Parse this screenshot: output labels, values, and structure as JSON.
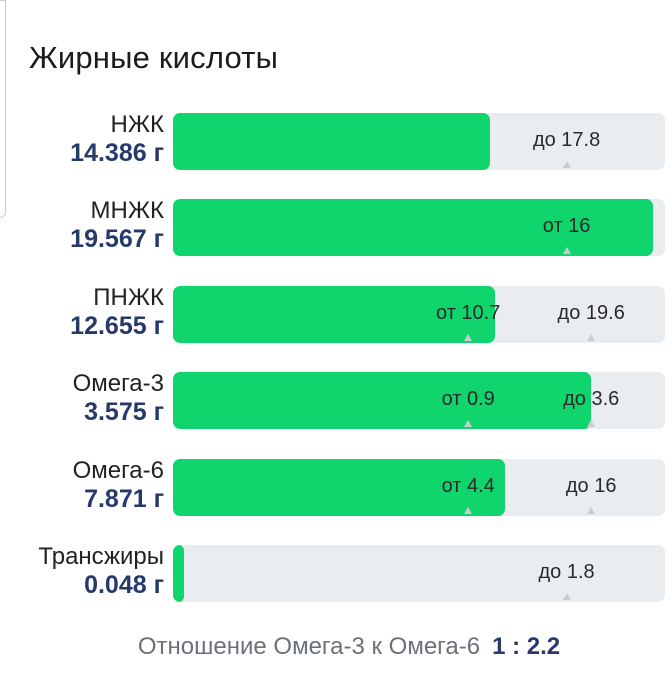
{
  "title": "Жирные кислоты",
  "colors": {
    "fill": "#10d46c",
    "track": "#eaedf0",
    "value_text": "#27386b"
  },
  "rows": [
    {
      "name": "НЖК",
      "value": "14.386 г",
      "fill_fraction": 0.645,
      "markers": [
        {
          "label": "до 17.8",
          "position_fraction": 0.8
        }
      ]
    },
    {
      "name": "МНЖК",
      "value": "19.567 г",
      "fill_fraction": 0.975,
      "markers": [
        {
          "label": "от 16",
          "position_fraction": 0.8
        }
      ]
    },
    {
      "name": "ПНЖК",
      "value": "12.655 г",
      "fill_fraction": 0.655,
      "markers": [
        {
          "label": "от 10.7",
          "position_fraction": 0.6
        },
        {
          "label": "до 19.6",
          "position_fraction": 0.85
        }
      ]
    },
    {
      "name": "Омега-3",
      "value": "3.575 г",
      "fill_fraction": 0.85,
      "markers": [
        {
          "label": "от 0.9",
          "position_fraction": 0.6
        },
        {
          "label": "до 3.6",
          "position_fraction": 0.85
        }
      ]
    },
    {
      "name": "Омега-6",
      "value": "7.871 г",
      "fill_fraction": 0.675,
      "markers": [
        {
          "label": "от 4.4",
          "position_fraction": 0.6
        },
        {
          "label": "до 16",
          "position_fraction": 0.85
        }
      ]
    },
    {
      "name": "Трансжиры",
      "value": "0.048 г",
      "fill_fraction": 0.022,
      "markers": [
        {
          "label": "до 1.8",
          "position_fraction": 0.8
        }
      ]
    }
  ],
  "ratio": {
    "label": "Отношение Омега-3 к Омега-6",
    "value": "1 : 2.2"
  }
}
